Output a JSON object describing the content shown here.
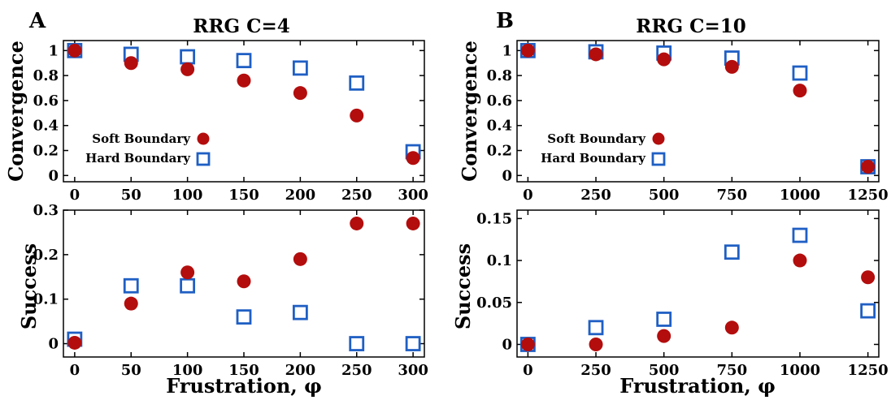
{
  "colors": {
    "soft": "#b30d0d",
    "hard": "#1f5fc4"
  },
  "chart_data": [
    {
      "type": "scatter",
      "panel_letter": "A",
      "title": "RRG C=4",
      "ylabel": "Convergence",
      "xlabel": "",
      "xlim": [
        -10,
        310
      ],
      "ylim": [
        -0.05,
        1.08
      ],
      "xticks": [
        "0",
        "50",
        "100",
        "150",
        "200",
        "250",
        "300"
      ],
      "yticks": [
        "0",
        "0.2",
        "0.4",
        "0.6",
        "0.8",
        "1"
      ],
      "legend": {
        "placement": "lower-left",
        "entries": [
          "Soft Boundary",
          "Hard Boundary"
        ]
      },
      "x": [
        0,
        50,
        100,
        150,
        200,
        250,
        300
      ],
      "series": [
        {
          "name": "Soft Boundary",
          "marker": "circle",
          "values": [
            1.0,
            0.9,
            0.85,
            0.76,
            0.66,
            0.48,
            0.14
          ]
        },
        {
          "name": "Hard Boundary",
          "marker": "square",
          "values": [
            1.0,
            0.97,
            0.95,
            0.92,
            0.86,
            0.74,
            0.19
          ]
        }
      ]
    },
    {
      "type": "scatter",
      "panel_letter": "B",
      "title": "RRG C=10",
      "ylabel": "Convergence",
      "xlabel": "",
      "xlim": [
        -40,
        1290
      ],
      "ylim": [
        -0.05,
        1.08
      ],
      "xticks": [
        "0",
        "250",
        "500",
        "750",
        "1000",
        "1250"
      ],
      "yticks": [
        "0",
        "0.2",
        "0.4",
        "0.6",
        "0.8",
        "1"
      ],
      "legend": {
        "placement": "lower-left",
        "entries": [
          "Soft Boundary",
          "Hard Boundary"
        ]
      },
      "x": [
        0,
        250,
        500,
        750,
        1000,
        1250
      ],
      "series": [
        {
          "name": "Soft Boundary",
          "marker": "circle",
          "values": [
            1.0,
            0.97,
            0.93,
            0.87,
            0.68,
            0.07
          ]
        },
        {
          "name": "Hard Boundary",
          "marker": "square",
          "values": [
            1.0,
            0.99,
            0.98,
            0.94,
            0.82,
            0.07
          ]
        }
      ]
    },
    {
      "type": "scatter",
      "panel_letter": "",
      "title": "",
      "ylabel": "Success",
      "xlabel": "Frustration, φ",
      "xlim": [
        -10,
        310
      ],
      "ylim": [
        -0.03,
        0.3
      ],
      "xticks": [
        "0",
        "50",
        "100",
        "150",
        "200",
        "250",
        "300"
      ],
      "yticks": [
        "0",
        "0.1",
        "0.2",
        "0.3"
      ],
      "x": [
        0,
        50,
        100,
        150,
        200,
        250,
        300
      ],
      "series": [
        {
          "name": "Soft Boundary",
          "marker": "circle",
          "values": [
            0.002,
            0.09,
            0.16,
            0.14,
            0.19,
            0.27,
            0.27
          ]
        },
        {
          "name": "Hard Boundary",
          "marker": "square",
          "values": [
            0.01,
            0.13,
            0.13,
            0.06,
            0.07,
            0.0,
            0.0
          ]
        }
      ]
    },
    {
      "type": "scatter",
      "panel_letter": "",
      "title": "",
      "ylabel": "Success",
      "xlabel": "Frustration, φ",
      "xlim": [
        -40,
        1290
      ],
      "ylim": [
        -0.015,
        0.16
      ],
      "xticks": [
        "0",
        "250",
        "500",
        "750",
        "1000",
        "1250"
      ],
      "yticks": [
        "0",
        "0.05",
        "0.1",
        "0.15"
      ],
      "x": [
        0,
        250,
        500,
        750,
        1000,
        1250
      ],
      "series": [
        {
          "name": "Soft Boundary",
          "marker": "circle",
          "values": [
            0.0,
            0.0,
            0.01,
            0.02,
            0.1,
            0.08
          ]
        },
        {
          "name": "Hard Boundary",
          "marker": "square",
          "values": [
            0.0,
            0.02,
            0.03,
            0.11,
            0.13,
            0.04
          ]
        }
      ]
    }
  ]
}
